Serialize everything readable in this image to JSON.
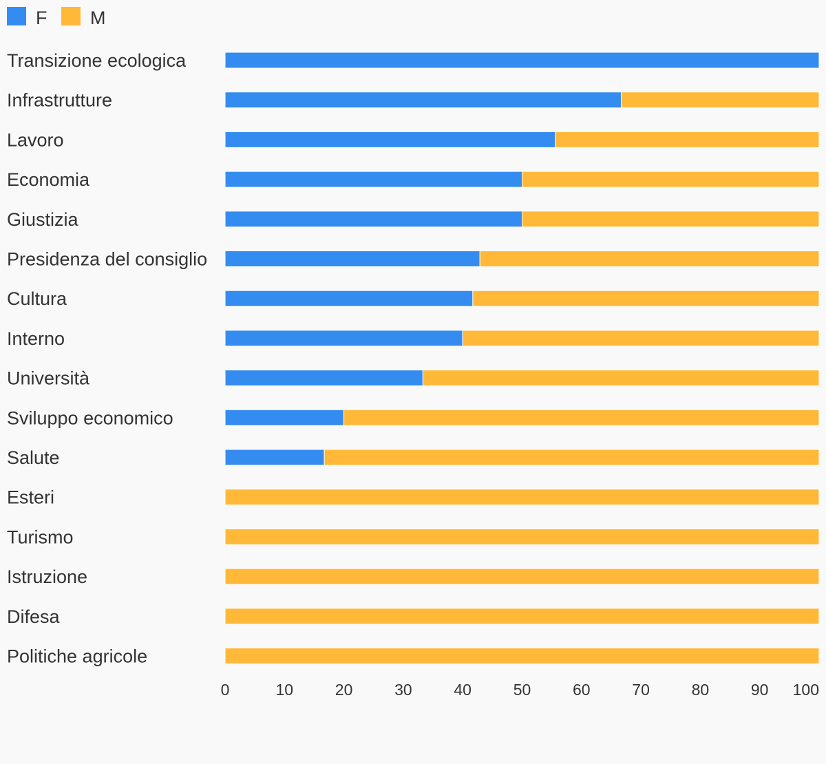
{
  "chart_data": {
    "type": "bar",
    "orientation": "horizontal",
    "stacked": true,
    "categories": [
      "Transizione ecologica",
      "Infrastrutture",
      "Lavoro",
      "Economia",
      "Giustizia",
      "Presidenza del consiglio",
      "Cultura",
      "Interno",
      "Università",
      "Sviluppo economico",
      "Salute",
      "Esteri",
      "Turismo",
      "Istruzione",
      "Difesa",
      "Politiche agricole"
    ],
    "series": [
      {
        "name": "F",
        "color": "#348cf0",
        "values": [
          100,
          66.7,
          55.6,
          50,
          50,
          42.9,
          41.7,
          40,
          33.3,
          20,
          16.7,
          0,
          0,
          0,
          0,
          0
        ]
      },
      {
        "name": "M",
        "color": "#ffb838",
        "values": [
          0,
          33.3,
          44.4,
          50,
          50,
          57.1,
          58.3,
          60,
          66.7,
          80,
          83.3,
          100,
          100,
          100,
          100,
          100
        ]
      }
    ],
    "xlim": [
      0,
      100
    ],
    "xticks": [
      0,
      10,
      20,
      30,
      40,
      50,
      60,
      70,
      80,
      90,
      100
    ],
    "title": "",
    "xlabel": "",
    "ylabel": "",
    "grid": false,
    "legend_position": "top-left"
  }
}
